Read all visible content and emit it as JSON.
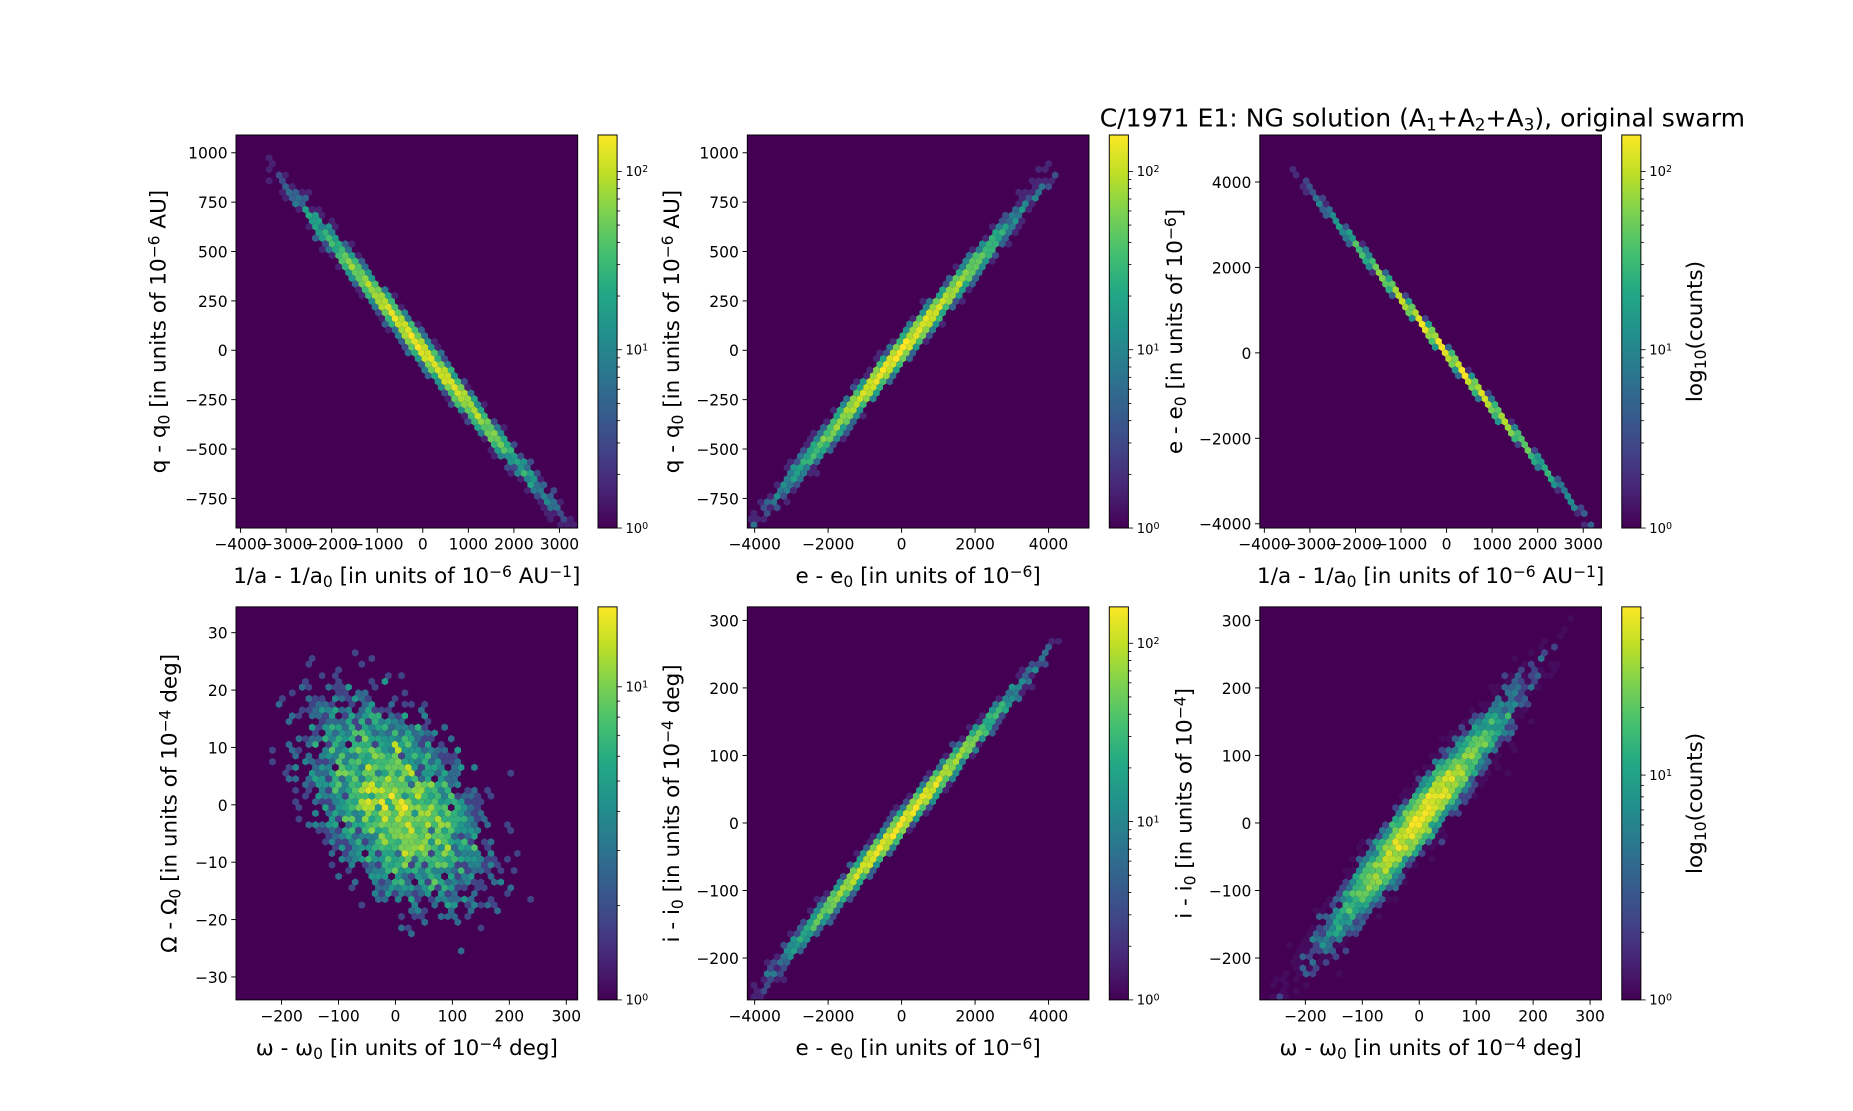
{
  "title": "C/1971 E1:  NG solution (A1+A2+A3), original swarm",
  "title_parts": {
    "prefix": "C/1971 E1:  NG solution (A",
    "a1": "1",
    "plus1": "+A",
    "a2": "2",
    "plus2": "+A",
    "a3": "3",
    "suffix": "), original swarm"
  },
  "colors": {
    "cmap_low": "#440154",
    "cmap_high": "#fde725",
    "background": "#440154"
  },
  "chart_data": [
    {
      "type": "heatmap",
      "subtype": "hexbin",
      "xlabel": "1/a - 1/a0 [in units of 10^-6 AU^-1]",
      "xlabel_parts": [
        "1/a - 1/a",
        "0",
        " [in units of 10",
        "−6",
        " AU",
        "−1",
        "]"
      ],
      "ylabel": "q - q0 [in units of 10^-6 AU]",
      "ylabel_parts": [
        "q - q",
        "0",
        " [in units of 10",
        "−6",
        " AU]"
      ],
      "xlim": [
        -4100,
        3400
      ],
      "ylim": [
        -900,
        1090
      ],
      "xticks": [
        -4000,
        -3000,
        -2000,
        -1000,
        0,
        1000,
        2000,
        3000
      ],
      "xtick_labels": [
        "−4000",
        "−3000",
        "−2000",
        "−1000",
        "0",
        "1000",
        "2000",
        "3000"
      ],
      "yticks": [
        -750,
        -500,
        -250,
        0,
        250,
        500,
        750,
        1000
      ],
      "ytick_labels": [
        "−750",
        "−500",
        "−250",
        "0",
        "250",
        "500",
        "750",
        "1000"
      ],
      "relation": {
        "slope": -0.2755,
        "intercept": 0,
        "x_range": [
          -3450,
          3300
        ],
        "scatter": 30,
        "x_sigma": 1150
      },
      "colorbar": {
        "scale": "log",
        "range": [
          1,
          160
        ],
        "ticks": [
          "10^0",
          "10^1",
          "10^2"
        ],
        "label": ""
      }
    },
    {
      "type": "heatmap",
      "subtype": "hexbin",
      "xlabel": "e - e0 [in units of 10^-6]",
      "xlabel_parts": [
        "e - e",
        "0",
        " [in units of 10",
        "−6",
        "]"
      ],
      "ylabel": "q - q0 [in units of 10^-6 AU]",
      "ylabel_parts": [
        "q - q",
        "0",
        " [in units of 10",
        "−6",
        " AU]"
      ],
      "xlim": [
        -4200,
        5100
      ],
      "ylim": [
        -900,
        1090
      ],
      "xticks": [
        -4000,
        -2000,
        0,
        2000,
        4000
      ],
      "xtick_labels": [
        "−4000",
        "−2000",
        "0",
        "2000",
        "4000"
      ],
      "yticks": [
        -750,
        -500,
        -250,
        0,
        250,
        500,
        750,
        1000
      ],
      "ytick_labels": [
        "−750",
        "−500",
        "−250",
        "0",
        "250",
        "500",
        "750",
        "1000"
      ],
      "relation": {
        "slope": 0.2165,
        "intercept": 0,
        "x_range": [
          -4100,
          4250
        ],
        "scatter": 30,
        "x_sigma": 1400
      },
      "colorbar": {
        "scale": "log",
        "range": [
          1,
          160
        ],
        "ticks": [
          "10^0",
          "10^1",
          "10^2"
        ],
        "label": ""
      }
    },
    {
      "type": "heatmap",
      "subtype": "hexbin",
      "xlabel": "1/a - 1/a0 [in units of 10^-6 AU^-1]",
      "xlabel_parts": [
        "1/a - 1/a",
        "0",
        " [in units of 10",
        "−6",
        " AU",
        "−1",
        "]"
      ],
      "ylabel": "e - e0 [in units of 10^-6]",
      "ylabel_parts": [
        "e - e",
        "0",
        " [in units of 10",
        "−6",
        "]"
      ],
      "xlim": [
        -4100,
        3400
      ],
      "ylim": [
        -4100,
        5100
      ],
      "xticks": [
        -4000,
        -3000,
        -2000,
        -1000,
        0,
        1000,
        2000,
        3000
      ],
      "xtick_labels": [
        "−4000",
        "−3000",
        "−2000",
        "−1000",
        "0",
        "1000",
        "2000",
        "3000"
      ],
      "yticks": [
        -4000,
        -2000,
        0,
        2000,
        4000
      ],
      "ytick_labels": [
        "−4000",
        "−2000",
        "0",
        "2000",
        "4000"
      ],
      "relation": {
        "slope": -1.272,
        "intercept": 0,
        "x_range": [
          -3450,
          3300
        ],
        "scatter": 40,
        "x_sigma": 1150
      },
      "colorbar": {
        "scale": "log",
        "range": [
          1,
          160
        ],
        "ticks": [
          "10^0",
          "10^1",
          "10^2"
        ],
        "label": "log10(counts)"
      }
    },
    {
      "type": "heatmap",
      "subtype": "hexbin",
      "xlabel": "ω - ω0 [in units of 10^-4 deg]",
      "xlabel_parts": [
        "ω - ω",
        "0",
        " [in units of 10",
        "−4",
        " deg]"
      ],
      "ylabel": "Ω - Ω0 [in units of 10^-4 deg]",
      "ylabel_parts": [
        "Ω - Ω",
        "0",
        " [in units of 10",
        "−4",
        " deg]"
      ],
      "xlim": [
        -280,
        320
      ],
      "ylim": [
        -34,
        34.5
      ],
      "xticks": [
        -200,
        -100,
        0,
        100,
        200,
        300
      ],
      "xtick_labels": [
        "−200",
        "−100",
        "0",
        "100",
        "200",
        "300"
      ],
      "yticks": [
        -30,
        -20,
        -10,
        0,
        10,
        20,
        30
      ],
      "ytick_labels": [
        "−30",
        "−20",
        "−10",
        "0",
        "10",
        "20",
        "30"
      ],
      "relation": {
        "slope": -0.055,
        "intercept": 0,
        "x_range": [
          -260,
          320
        ],
        "scatter": 8.5,
        "x_sigma": 85
      },
      "colorbar": {
        "scale": "log",
        "range": [
          1,
          18
        ],
        "ticks": [
          "10^0",
          "10^1"
        ],
        "label": ""
      }
    },
    {
      "type": "heatmap",
      "subtype": "hexbin",
      "xlabel": "e - e0 [in units of 10^-6]",
      "xlabel_parts": [
        "e - e",
        "0",
        " [in units of 10",
        "−6",
        "]"
      ],
      "ylabel": "i - i0 [in units of 10^-4 deg]",
      "ylabel_parts": [
        "i - i",
        "0",
        " [in units of 10",
        "−4",
        " deg]"
      ],
      "xlim": [
        -4200,
        5100
      ],
      "ylim": [
        -262,
        320
      ],
      "xticks": [
        -4000,
        -2000,
        0,
        2000,
        4000
      ],
      "xtick_labels": [
        "−4000",
        "−2000",
        "0",
        "2000",
        "4000"
      ],
      "yticks": [
        -200,
        -100,
        0,
        100,
        200,
        300
      ],
      "ytick_labels": [
        "−200",
        "−100",
        "0",
        "100",
        "200",
        "300"
      ],
      "relation": {
        "slope": 0.0628,
        "intercept": 0,
        "x_range": [
          -4100,
          4250
        ],
        "scatter": 8,
        "x_sigma": 1400
      },
      "colorbar": {
        "scale": "log",
        "range": [
          1,
          160
        ],
        "ticks": [
          "10^0",
          "10^1",
          "10^2"
        ],
        "label": ""
      }
    },
    {
      "type": "heatmap",
      "subtype": "hexbin",
      "xlabel": "ω - ω0 [in units of 10^-4 deg]",
      "xlabel_parts": [
        "ω - ω",
        "0",
        " [in units of 10",
        "−4",
        " deg]"
      ],
      "ylabel": "i - i0 [in units of 10^-4]",
      "ylabel_parts": [
        "i - i",
        "0",
        " [in units of 10",
        "−4",
        "]"
      ],
      "xlim": [
        -280,
        320
      ],
      "ylim": [
        -262,
        320
      ],
      "xticks": [
        -200,
        -100,
        0,
        100,
        200,
        300
      ],
      "xtick_labels": [
        "−200",
        "−100",
        "0",
        "100",
        "200",
        "300"
      ],
      "yticks": [
        -200,
        -100,
        0,
        100,
        200,
        300
      ],
      "ytick_labels": [
        "−200",
        "−100",
        "0",
        "100",
        "200",
        "300"
      ],
      "relation": {
        "slope": 1.03,
        "intercept": 5,
        "x_range": [
          -260,
          270
        ],
        "scatter": 22,
        "x_sigma": 80
      },
      "colorbar": {
        "scale": "log",
        "range": [
          1,
          56
        ],
        "ticks": [
          "10^0",
          "10^1"
        ],
        "label": "log10(counts)"
      }
    }
  ]
}
